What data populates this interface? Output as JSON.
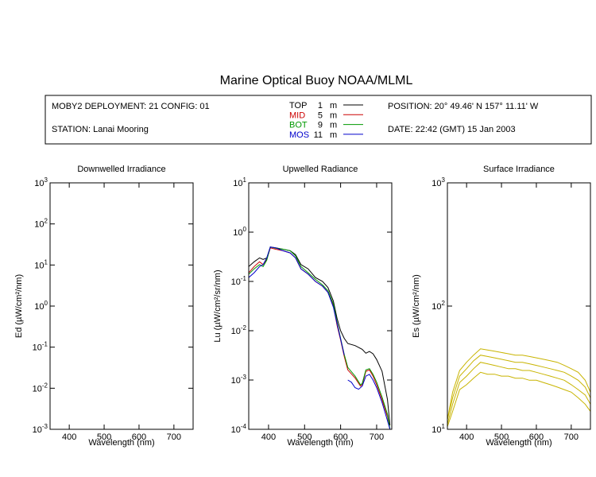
{
  "title": "Marine Optical Buoy NOAA/MLML",
  "info": {
    "deployment": "MOBY2 DEPLOYMENT: 21 CONFIG: 01",
    "station": "STATION: Lanai Mooring",
    "position": "POSITION: 20° 49.46' N   157° 11.11' W",
    "date": "DATE: 22:42 (GMT) 15 Jan 2003",
    "legend": [
      {
        "label": "TOP",
        "depth": "1",
        "unit": "m",
        "color": "#000000"
      },
      {
        "label": "MID",
        "depth": "5",
        "unit": "m",
        "color": "#cc0000"
      },
      {
        "label": "BOT",
        "depth": "9",
        "unit": "m",
        "color": "#009900"
      },
      {
        "label": "MOS",
        "depth": "11",
        "unit": "m",
        "color": "#0000cc"
      }
    ]
  },
  "chart_data": [
    {
      "type": "line",
      "title": "Downwelled Irradiance",
      "xlabel": "Wavelength (nm)",
      "ylabel": "Ed  (µW/cm²/nm)",
      "yscale": "log",
      "xlim": [
        345,
        755
      ],
      "ylim": [
        0.001,
        1000
      ],
      "xticks": [
        400,
        500,
        600,
        700
      ],
      "yticks": [
        "10^-3",
        "10^-2",
        "10^-1",
        "10^0",
        "10^1",
        "10^2",
        "10^3"
      ],
      "series": []
    },
    {
      "type": "line",
      "title": "Upwelled Radiance",
      "xlabel": "Wavelength (nm)",
      "ylabel": "Lu  (µW/cm²/sr/nm)",
      "yscale": "log",
      "xlim": [
        345,
        742
      ],
      "ylim": [
        0.0001,
        10
      ],
      "xticks": [
        400,
        500,
        600,
        700
      ],
      "yticks": [
        "10^-4",
        "10^-3",
        "10^-2",
        "10^-1",
        "10^0",
        "10^1"
      ],
      "series": [
        {
          "name": "TOP",
          "color": "#000000",
          "x": [
            345,
            360,
            375,
            385,
            395,
            405,
            420,
            440,
            460,
            475,
            490,
            510,
            530,
            550,
            565,
            580,
            590,
            600,
            610,
            620,
            640,
            660,
            670,
            680,
            690,
            700,
            715,
            730,
            737
          ],
          "y": [
            0.2,
            0.25,
            0.3,
            0.28,
            0.3,
            0.5,
            0.48,
            0.45,
            0.42,
            0.35,
            0.22,
            0.18,
            0.12,
            0.1,
            0.075,
            0.04,
            0.018,
            0.01,
            0.007,
            0.0055,
            0.005,
            0.0042,
            0.0035,
            0.0038,
            0.0034,
            0.0026,
            0.0015,
            0.0004,
            0.00012
          ]
        },
        {
          "name": "MID",
          "color": "#cc0000",
          "x": [
            345,
            360,
            375,
            385,
            395,
            405,
            420,
            440,
            460,
            475,
            490,
            510,
            530,
            550,
            565,
            580,
            590,
            600,
            610,
            620,
            640,
            655,
            660,
            670,
            680,
            690,
            700,
            715,
            730,
            737
          ],
          "y": [
            0.15,
            0.2,
            0.25,
            0.22,
            0.28,
            0.48,
            0.45,
            0.42,
            0.38,
            0.3,
            0.18,
            0.14,
            0.1,
            0.08,
            0.06,
            0.032,
            0.013,
            0.0065,
            0.003,
            0.0016,
            0.0011,
            0.00075,
            0.0008,
            0.0015,
            0.0016,
            0.0012,
            0.0008,
            0.0004,
            0.00018,
            0.0001
          ]
        },
        {
          "name": "BOT",
          "color": "#009900",
          "x": [
            345,
            360,
            375,
            385,
            395,
            405,
            420,
            440,
            460,
            475,
            490,
            510,
            530,
            550,
            565,
            580,
            590,
            600,
            610,
            620,
            640,
            655,
            660,
            670,
            680,
            690,
            700,
            715,
            730,
            737
          ],
          "y": [
            0.14,
            0.18,
            0.22,
            0.2,
            0.27,
            0.5,
            0.47,
            0.45,
            0.42,
            0.33,
            0.2,
            0.15,
            0.11,
            0.085,
            0.065,
            0.035,
            0.015,
            0.007,
            0.0033,
            0.0018,
            0.0012,
            0.0008,
            0.00085,
            0.0016,
            0.0017,
            0.0013,
            0.0009,
            0.00045,
            0.0002,
            0.0001
          ]
        },
        {
          "name": "MOS",
          "color": "#0000cc",
          "x": [
            345,
            360,
            375,
            385,
            395,
            405,
            420,
            440,
            460,
            475,
            490,
            510,
            530,
            550,
            565,
            580,
            590,
            600,
            610
          ],
          "y": [
            0.12,
            0.15,
            0.2,
            0.22,
            0.3,
            0.5,
            0.48,
            0.42,
            0.38,
            0.3,
            0.18,
            0.14,
            0.1,
            0.08,
            0.06,
            0.03,
            0.014,
            0.0068,
            0.0032
          ]
        },
        {
          "name": "MOS",
          "color": "#0000cc",
          "x": [
            620,
            630,
            640,
            650,
            660,
            670,
            680,
            690,
            700,
            715,
            730,
            737
          ],
          "y": [
            0.001,
            0.0009,
            0.0007,
            0.00065,
            0.00075,
            0.0012,
            0.0013,
            0.001,
            0.0007,
            0.00035,
            0.00015,
            0.0001
          ]
        }
      ]
    },
    {
      "type": "line",
      "title": "Surface Irradiance",
      "xlabel": "Wavelength (nm)",
      "ylabel": "Es  (µW/cm²/nm)",
      "yscale": "log",
      "xlim": [
        345,
        755
      ],
      "ylim": [
        10,
        1000
      ],
      "xticks": [
        400,
        500,
        600,
        700
      ],
      "yticks": [
        "10^1",
        "10^2",
        "10^3"
      ],
      "series": [
        {
          "color": "#c8b400",
          "x": [
            345,
            360,
            380,
            400,
            420,
            440,
            460,
            480,
            500,
            520,
            540,
            560,
            580,
            600,
            620,
            640,
            660,
            680,
            700,
            720,
            740,
            755
          ],
          "y": [
            12,
            20,
            30,
            35,
            40,
            45,
            44,
            43,
            42,
            41,
            40,
            40,
            39,
            38,
            37,
            36,
            35,
            33,
            31,
            29,
            25,
            20
          ]
        },
        {
          "color": "#c8b400",
          "x": [
            345,
            360,
            380,
            400,
            420,
            440,
            460,
            480,
            500,
            520,
            540,
            560,
            580,
            600,
            620,
            640,
            660,
            680,
            700,
            720,
            740,
            755
          ],
          "y": [
            12,
            18,
            27,
            31,
            36,
            40,
            39,
            38,
            37,
            36,
            35,
            35,
            34,
            33,
            32,
            31,
            30,
            29,
            27,
            25,
            22,
            18
          ]
        },
        {
          "color": "#c8b400",
          "x": [
            345,
            360,
            380,
            400,
            420,
            440,
            460,
            480,
            500,
            520,
            540,
            560,
            580,
            600,
            620,
            640,
            660,
            680,
            700,
            720,
            740,
            755
          ],
          "y": [
            11,
            16,
            24,
            27,
            31,
            35,
            34,
            33,
            32,
            31,
            31,
            30,
            30,
            29,
            28,
            27,
            26,
            25,
            23,
            21,
            19,
            16
          ]
        },
        {
          "color": "#c8b400",
          "x": [
            345,
            360,
            380,
            400,
            420,
            440,
            460,
            480,
            500,
            520,
            540,
            560,
            580,
            600,
            620,
            640,
            660,
            680,
            700,
            720,
            740,
            755
          ],
          "y": [
            10.5,
            14,
            21,
            23,
            26,
            29,
            28,
            28,
            27,
            27,
            26,
            26,
            25,
            25,
            24,
            23,
            22,
            21,
            20,
            18,
            16,
            14
          ]
        }
      ]
    }
  ]
}
